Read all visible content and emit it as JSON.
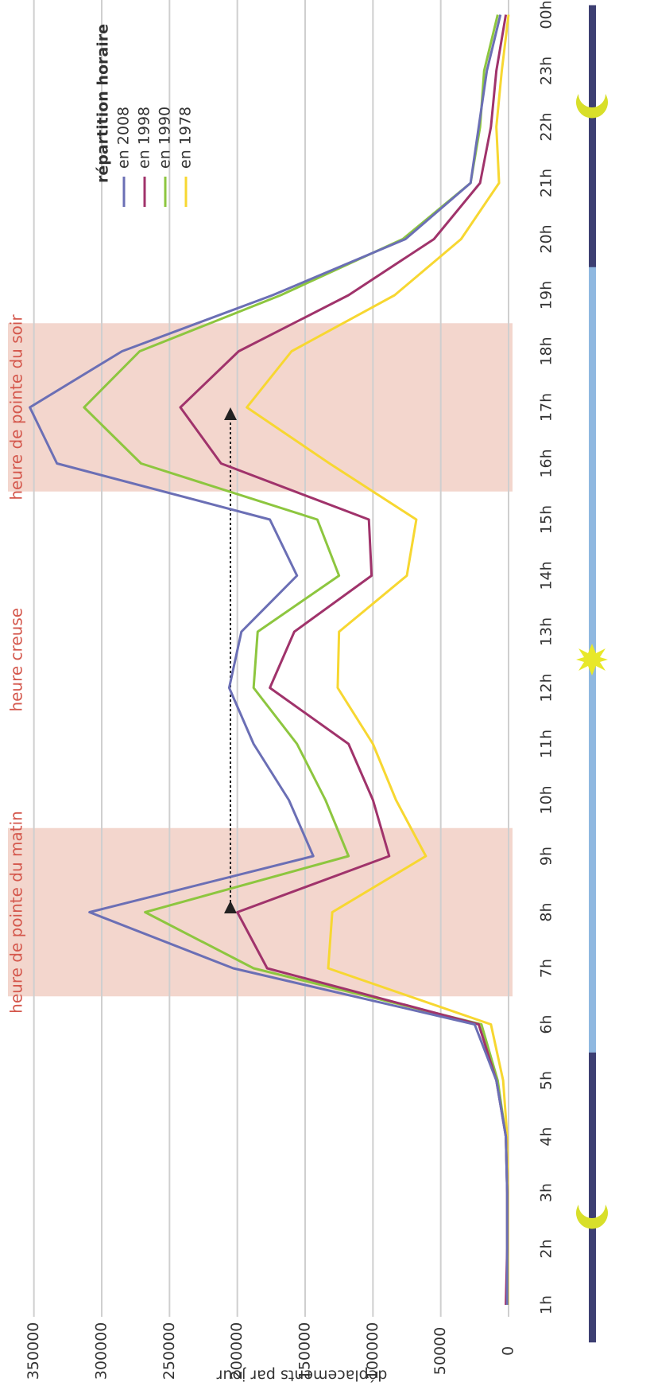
{
  "chart_data": {
    "type": "line",
    "y_axis_label": "déplacements par jour",
    "legend_title": "répartition horaire",
    "annotations": [
      "heure de pointe du matin",
      "heure creuse",
      "heure de pointe du soir"
    ],
    "categories": [
      "1h",
      "2h",
      "3h",
      "4h",
      "5h",
      "6h",
      "7h",
      "8h",
      "9h",
      "10h",
      "11h",
      "12h",
      "13h",
      "14h",
      "15h",
      "16h",
      "17h",
      "18h",
      "19h",
      "20h",
      "21h",
      "22h",
      "23h",
      "00h"
    ],
    "series": [
      {
        "name": "en 2008",
        "color": "#6b6fb5",
        "values": [
          1000,
          1000,
          1000,
          2000,
          9000,
          25000,
          203000,
          309000,
          144000,
          162000,
          188000,
          206000,
          197000,
          156000,
          176000,
          333000,
          353000,
          285000,
          174000,
          76000,
          28000,
          22000,
          16000,
          6000
        ]
      },
      {
        "name": "en 1998",
        "color": "#a0336b",
        "values": [
          2000,
          1000,
          1000,
          2000,
          9000,
          22000,
          178000,
          200000,
          88000,
          100000,
          118000,
          176000,
          158000,
          101000,
          103000,
          212000,
          242000,
          199000,
          118000,
          55000,
          21000,
          13000,
          9000,
          2000
        ]
      },
      {
        "name": "en 1990",
        "color": "#8dc63f",
        "values": [
          1000,
          1000,
          1000,
          2000,
          8000,
          20000,
          188000,
          268000,
          118000,
          135000,
          156000,
          188000,
          185000,
          125000,
          141000,
          271000,
          313000,
          272000,
          168000,
          78000,
          28000,
          21000,
          18000,
          8000
        ]
      },
      {
        "name": "en 1978",
        "color": "#f7d731",
        "values": [
          500,
          500,
          500,
          1000,
          4000,
          13000,
          133000,
          130000,
          61000,
          83000,
          100000,
          126000,
          125000,
          75000,
          68000,
          132000,
          193000,
          160000,
          84000,
          35000,
          7000,
          9000,
          5000,
          0
        ]
      }
    ],
    "ylim": [
      0,
      375000
    ],
    "yticks": [
      0,
      50000,
      100000,
      150000,
      200000,
      250000,
      300000,
      350000
    ],
    "grid": true
  }
}
